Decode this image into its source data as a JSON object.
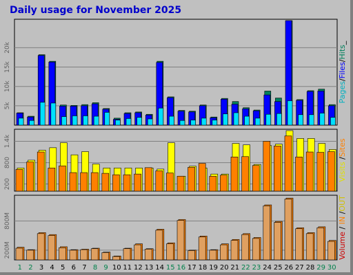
{
  "title": "Daily usage for November 2025",
  "colors": {
    "hits": "#00805c",
    "files": "#0000ff",
    "pages": "#00e0ff",
    "visits": "#ffff00",
    "sites": "#ff8000",
    "in": "#ff8000",
    "out": "#e0a060",
    "weekend_label": "#00804a",
    "weekday_label": "#000000",
    "bg": "#c0c0c0"
  },
  "chart_data": [
    {
      "type": "bar",
      "title": "Daily usage for November 2025",
      "ylabel_parts": [
        "Pages",
        "/",
        "Files",
        "/",
        "Hits",
        "_"
      ],
      "ylabel_colors": [
        "#00b0c0",
        "#000000",
        "#0000ff",
        "#000000",
        "#00805c",
        "#000000"
      ],
      "y_ticks": [
        "5k",
        "10k",
        "15k",
        "20k"
      ],
      "ylim": [
        0,
        27000
      ],
      "x": [
        1,
        2,
        3,
        4,
        5,
        6,
        7,
        8,
        9,
        10,
        11,
        12,
        13,
        14,
        15,
        16,
        17,
        18,
        19,
        20,
        21,
        22,
        23,
        24,
        25,
        26,
        27,
        28,
        29,
        30
      ],
      "series": [
        {
          "name": "Hits",
          "values": [
            3200,
            2300,
            18200,
            16500,
            5200,
            5100,
            5300,
            5800,
            4300,
            1800,
            3200,
            3400,
            2800,
            16500,
            7300,
            3800,
            3600,
            5200,
            2100,
            6900,
            6100,
            4500,
            3900,
            8800,
            7000,
            27000,
            6600,
            8900,
            9300,
            5300
          ]
        },
        {
          "name": "Files",
          "values": [
            3100,
            2100,
            18000,
            16300,
            4900,
            4900,
            5000,
            5500,
            4100,
            1500,
            3000,
            3200,
            2600,
            16200,
            7100,
            3600,
            3400,
            5000,
            1900,
            6700,
            5400,
            4200,
            3700,
            7800,
            6100,
            27000,
            6400,
            8700,
            8800,
            5000
          ]
        },
        {
          "name": "Pages",
          "values": [
            1800,
            1200,
            5900,
            5700,
            2200,
            2400,
            2400,
            2300,
            3300,
            1300,
            1700,
            2000,
            1600,
            4400,
            2300,
            1200,
            1300,
            1800,
            1300,
            2900,
            3200,
            2300,
            1800,
            2800,
            3000,
            6300,
            2700,
            2700,
            3100,
            2000
          ]
        }
      ]
    },
    {
      "type": "bar",
      "ylabel_parts": [
        "Visits",
        " /",
        "Sites"
      ],
      "ylabel_colors": [
        "#e0e000",
        "#000000",
        "#ff8000"
      ],
      "y_ticks": [
        "200",
        "800",
        "1.4k"
      ],
      "ylim": [
        0,
        1700
      ],
      "x": [
        1,
        2,
        3,
        4,
        5,
        6,
        7,
        8,
        9,
        10,
        11,
        12,
        13,
        14,
        15,
        16,
        17,
        18,
        19,
        20,
        21,
        22,
        23,
        24,
        25,
        26,
        27,
        28,
        29,
        30
      ],
      "series": [
        {
          "name": "Visits",
          "values": [
            650,
            870,
            1150,
            1220,
            1360,
            1020,
            1110,
            760,
            650,
            650,
            650,
            650,
            650,
            620,
            1360,
            420,
            700,
            650,
            480,
            480,
            1340,
            1300,
            750,
            1280,
            1320,
            1700,
            1480,
            1480,
            1340,
            1170
          ]
        },
        {
          "name": "Sites",
          "values": [
            610,
            820,
            1100,
            650,
            710,
            520,
            520,
            520,
            500,
            460,
            460,
            480,
            660,
            570,
            510,
            420,
            670,
            780,
            420,
            450,
            960,
            970,
            720,
            1400,
            1270,
            1550,
            960,
            1100,
            1090,
            1110
          ]
        }
      ]
    },
    {
      "type": "bar",
      "ylabel_parts": [
        "Volume",
        " / ",
        "IN",
        " /",
        "OUT"
      ],
      "ylabel_colors": [
        "#cc0000",
        "#000000",
        "#ff8000",
        "#000000",
        "#d0c000"
      ],
      "y_ticks": [
        "200M",
        "800M"
      ],
      "ylim": [
        0,
        1300
      ],
      "x": [
        1,
        2,
        3,
        4,
        5,
        6,
        7,
        8,
        9,
        10,
        11,
        12,
        13,
        14,
        15,
        16,
        17,
        18,
        19,
        20,
        21,
        22,
        23,
        24,
        25,
        26,
        27,
        28,
        29,
        30
      ],
      "series": [
        {
          "name": "IN",
          "values": [
            260,
            210,
            560,
            520,
            270,
            210,
            220,
            240,
            160,
            80,
            240,
            330,
            230,
            630,
            350,
            830,
            200,
            490,
            210,
            330,
            420,
            540,
            460,
            1130,
            790,
            1270,
            660,
            560,
            680,
            400
          ]
        },
        {
          "name": "OUT",
          "values": [
            240,
            200,
            540,
            500,
            250,
            200,
            210,
            230,
            150,
            70,
            230,
            310,
            220,
            610,
            330,
            810,
            190,
            470,
            200,
            310,
            400,
            520,
            440,
            1110,
            770,
            1250,
            640,
            540,
            660,
            380
          ]
        }
      ]
    }
  ],
  "x_labels": [
    "1",
    "2",
    "3",
    "4",
    "5",
    "6",
    "7",
    "8",
    "9",
    "10",
    "11",
    "12",
    "13",
    "14",
    "15",
    "16",
    "17",
    "18",
    "19",
    "20",
    "21",
    "22",
    "23",
    "24",
    "25",
    "26",
    "27",
    "28",
    "29",
    "30"
  ],
  "weekend_days": [
    1,
    2,
    8,
    9,
    15,
    16,
    22,
    23,
    29,
    30
  ]
}
